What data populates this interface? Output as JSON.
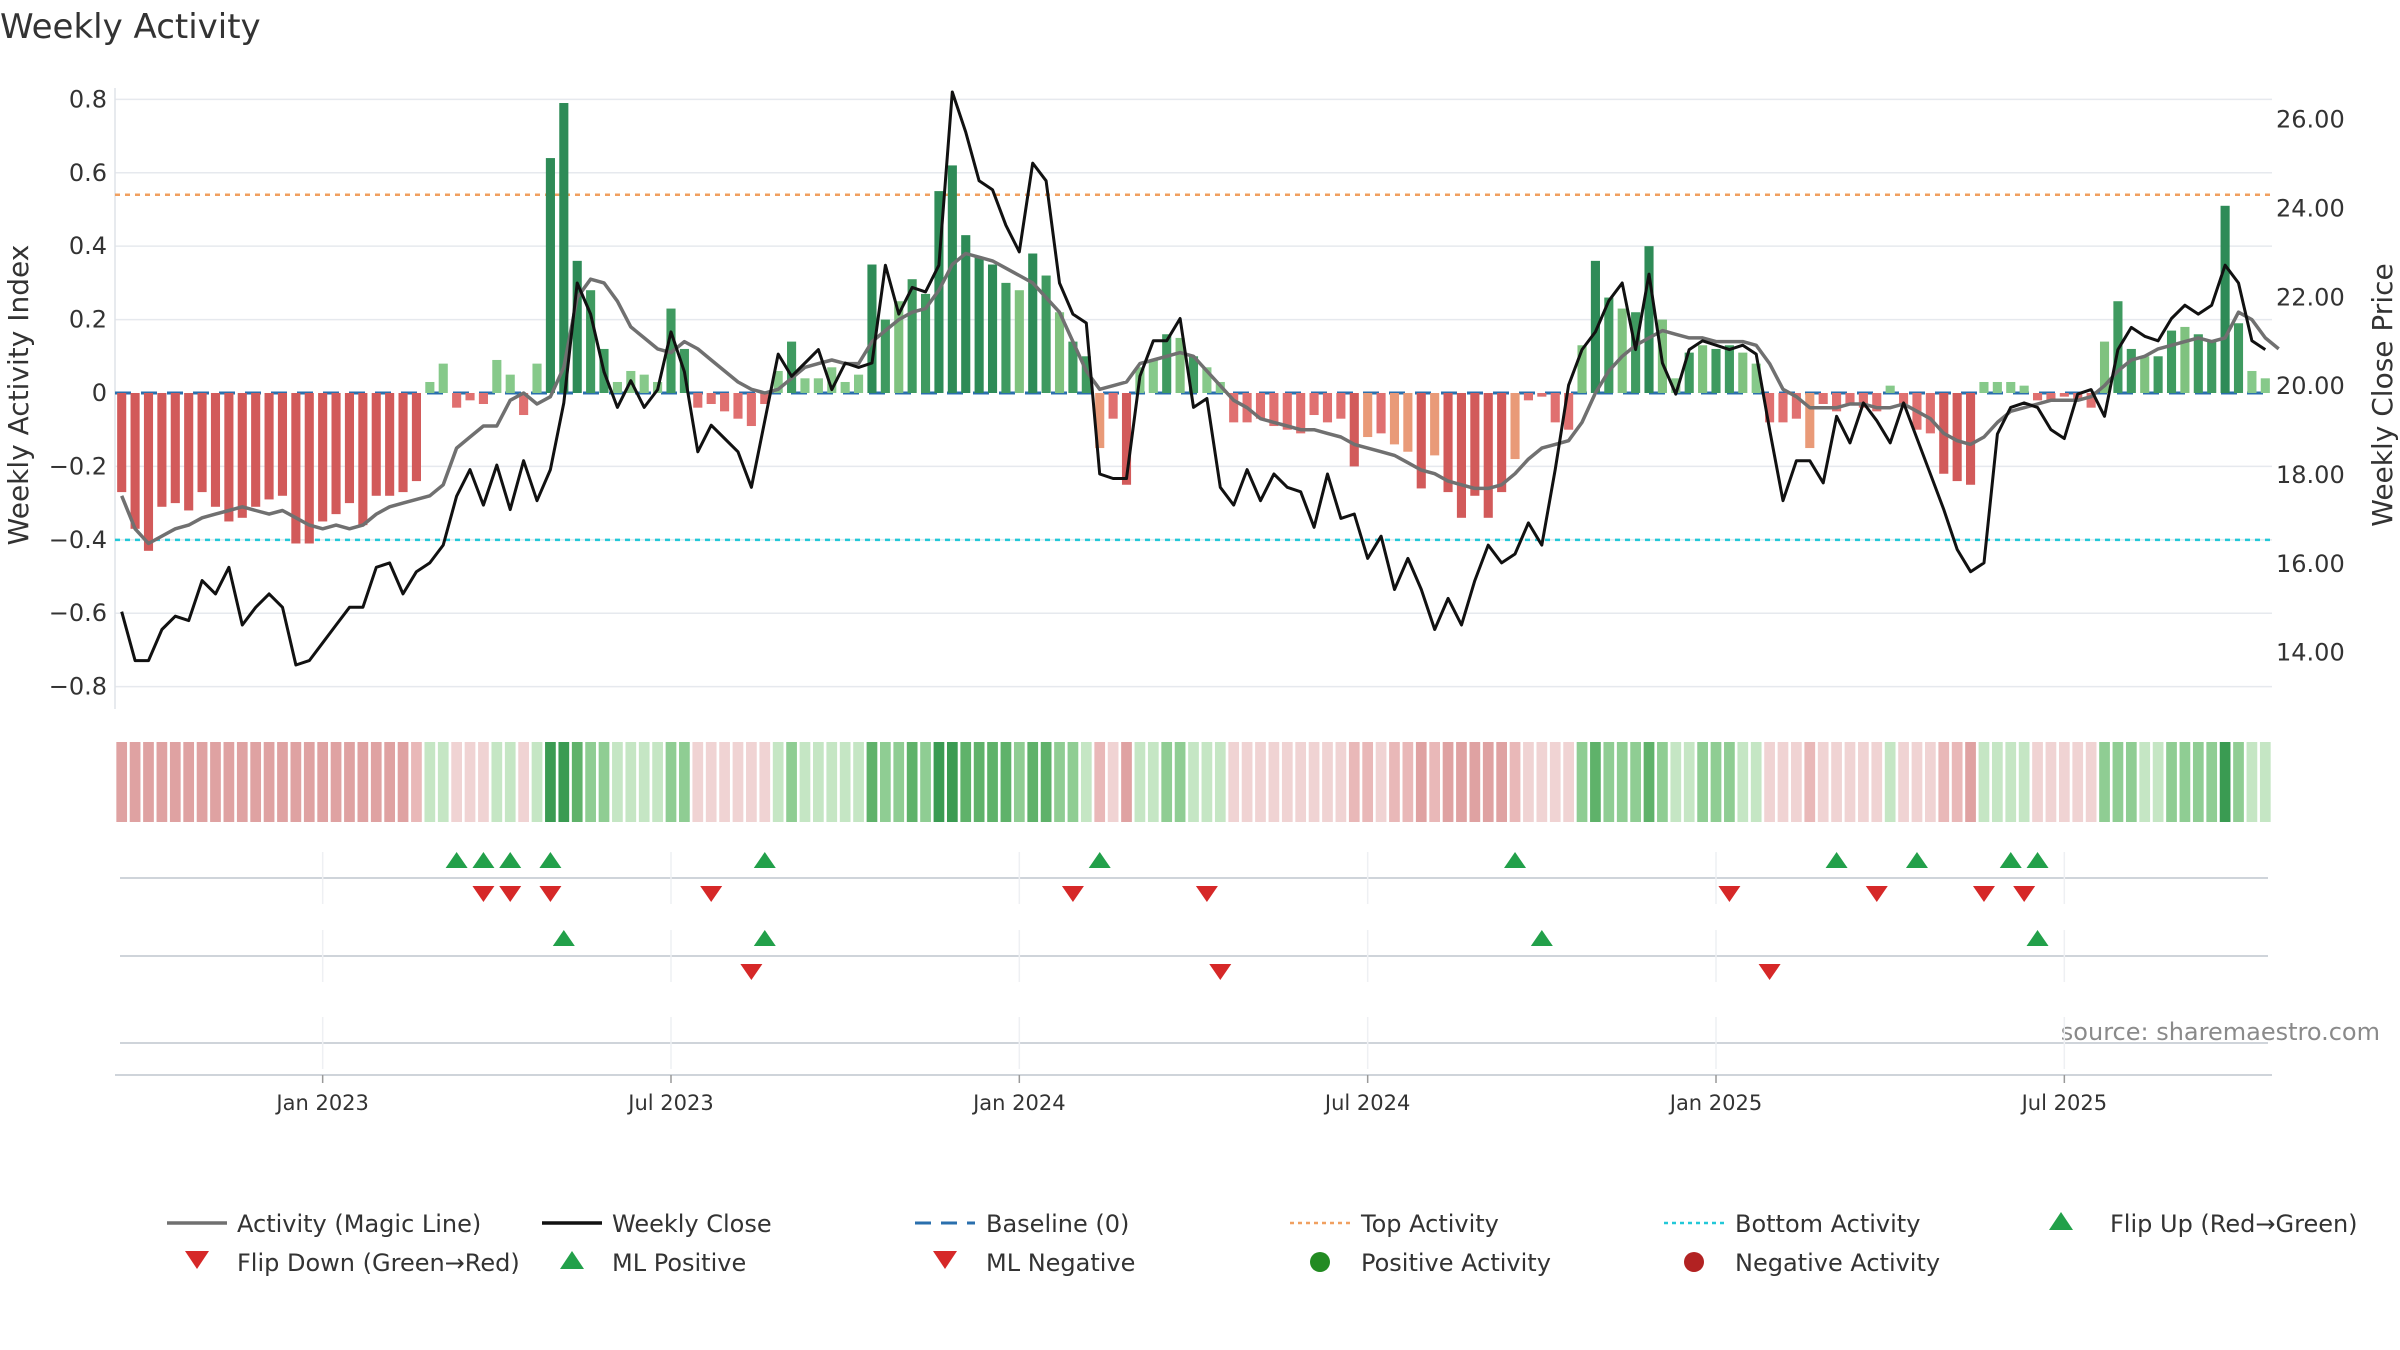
{
  "chart_data": {
    "type": "bar+line",
    "title": "Weekly Activity",
    "ylabel_left": "Weekly Activity Index",
    "ylabel_right": "Weekly Close Price",
    "ylim_left": [
      -0.85,
      0.82
    ],
    "ylim_right": [
      12.8,
      26.6
    ],
    "yticks_left": [
      {
        "v": 0.8,
        "label": "0.8"
      },
      {
        "v": 0.6,
        "label": "0.6"
      },
      {
        "v": 0.4,
        "label": "0.4"
      },
      {
        "v": 0.2,
        "label": "0.2"
      },
      {
        "v": 0,
        "label": "0"
      },
      {
        "v": -0.2,
        "label": "−0.2"
      },
      {
        "v": -0.4,
        "label": "−0.4"
      },
      {
        "v": -0.6,
        "label": "−0.6"
      },
      {
        "v": -0.8,
        "label": "−0.8"
      }
    ],
    "yticks_right": [
      {
        "v": 26,
        "label": "26.00"
      },
      {
        "v": 24,
        "label": "24.00"
      },
      {
        "v": 22,
        "label": "22.00"
      },
      {
        "v": 20,
        "label": "20.00"
      },
      {
        "v": 18,
        "label": "18.00"
      },
      {
        "v": 16,
        "label": "16.00"
      },
      {
        "v": 14,
        "label": "14.00"
      }
    ],
    "xticks": [
      {
        "week": 15,
        "label": "Jan 2023"
      },
      {
        "week": 41,
        "label": "Jul 2023"
      },
      {
        "week": 67,
        "label": "Jan 2024"
      },
      {
        "week": 93,
        "label": "Jul 2024"
      },
      {
        "week": 119,
        "label": "Jan 2025"
      },
      {
        "week": 145,
        "label": "Jul 2025"
      }
    ],
    "top_activity": 0.54,
    "bottom_activity": -0.4,
    "baseline": 0,
    "activity_weekly": [
      -0.27,
      -0.37,
      -0.43,
      -0.31,
      -0.3,
      -0.32,
      -0.27,
      -0.31,
      -0.35,
      -0.34,
      -0.31,
      -0.29,
      -0.28,
      -0.41,
      -0.41,
      -0.35,
      -0.33,
      -0.3,
      -0.36,
      -0.28,
      -0.28,
      -0.27,
      -0.24,
      0.03,
      0.08,
      -0.04,
      -0.02,
      -0.03,
      0.09,
      0.05,
      -0.06,
      0.08,
      0.64,
      0.79,
      0.36,
      0.28,
      0.12,
      0.03,
      0.06,
      0.05,
      0.03,
      0.23,
      0.12,
      -0.04,
      -0.03,
      -0.05,
      -0.07,
      -0.09,
      -0.03,
      0.06,
      0.14,
      0.04,
      0.04,
      0.07,
      0.03,
      0.05,
      0.35,
      0.2,
      0.25,
      0.31,
      0.27,
      0.55,
      0.62,
      0.43,
      0.37,
      0.35,
      0.3,
      0.28,
      0.38,
      0.32,
      0.22,
      0.14,
      0.1,
      -0.15,
      -0.07,
      -0.25,
      0.07,
      0.09,
      0.16,
      0.15,
      0.1,
      0.07,
      0.03,
      -0.08,
      -0.08,
      -0.07,
      -0.09,
      -0.1,
      -0.11,
      -0.06,
      -0.08,
      -0.07,
      -0.2,
      -0.12,
      -0.11,
      -0.14,
      -0.16,
      -0.26,
      -0.17,
      -0.27,
      -0.34,
      -0.28,
      -0.34,
      -0.27,
      -0.18,
      -0.02,
      -0.01,
      -0.08,
      -0.1,
      0.13,
      0.36,
      0.26,
      0.23,
      0.22,
      0.4,
      0.2,
      0.04,
      0.11,
      0.13,
      0.12,
      0.13,
      0.11,
      0.08,
      -0.08,
      -0.08,
      -0.07,
      -0.15,
      -0.03,
      -0.05,
      -0.03,
      -0.04,
      -0.05,
      0.02,
      -0.03,
      -0.1,
      -0.11,
      -0.22,
      -0.24,
      -0.25,
      0.03,
      0.03,
      0.03,
      0.02,
      -0.02,
      -0.02,
      -0.01,
      -0.02,
      -0.04,
      0.14,
      0.25,
      0.12,
      0.1,
      0.1,
      0.17,
      0.18,
      0.16,
      0.14,
      0.51,
      0.19,
      0.06,
      0.04
    ],
    "magic_line": [
      -0.28,
      -0.37,
      -0.41,
      -0.39,
      -0.37,
      -0.36,
      -0.34,
      -0.33,
      -0.32,
      -0.31,
      -0.32,
      -0.33,
      -0.32,
      -0.34,
      -0.36,
      -0.37,
      -0.36,
      -0.37,
      -0.36,
      -0.33,
      -0.31,
      -0.3,
      -0.29,
      -0.28,
      -0.25,
      -0.15,
      -0.12,
      -0.09,
      -0.09,
      -0.02,
      0.0,
      -0.03,
      -0.01,
      0.07,
      0.26,
      0.31,
      0.3,
      0.25,
      0.18,
      0.15,
      0.12,
      0.11,
      0.14,
      0.12,
      0.09,
      0.06,
      0.03,
      0.01,
      0.0,
      0.01,
      0.04,
      0.07,
      0.08,
      0.09,
      0.08,
      0.08,
      0.14,
      0.17,
      0.2,
      0.22,
      0.23,
      0.28,
      0.35,
      0.38,
      0.37,
      0.36,
      0.34,
      0.32,
      0.3,
      0.26,
      0.22,
      0.14,
      0.06,
      0.01,
      0.02,
      0.03,
      0.08,
      0.09,
      0.1,
      0.11,
      0.1,
      0.06,
      0.02,
      -0.02,
      -0.04,
      -0.07,
      -0.08,
      -0.09,
      -0.1,
      -0.1,
      -0.11,
      -0.12,
      -0.14,
      -0.15,
      -0.16,
      -0.17,
      -0.19,
      -0.21,
      -0.22,
      -0.24,
      -0.25,
      -0.26,
      -0.26,
      -0.25,
      -0.22,
      -0.18,
      -0.15,
      -0.14,
      -0.13,
      -0.08,
      0.0,
      0.06,
      0.1,
      0.13,
      0.15,
      0.17,
      0.16,
      0.15,
      0.15,
      0.14,
      0.14,
      0.14,
      0.13,
      0.08,
      0.01,
      -0.01,
      -0.04,
      -0.04,
      -0.04,
      -0.03,
      -0.03,
      -0.04,
      -0.04,
      -0.03,
      -0.05,
      -0.07,
      -0.11,
      -0.13,
      -0.14,
      -0.12,
      -0.08,
      -0.05,
      -0.04,
      -0.03,
      -0.02,
      -0.02,
      -0.02,
      -0.01,
      0.02,
      0.06,
      0.09,
      0.1,
      0.12,
      0.13,
      0.14,
      0.15,
      0.14,
      0.15,
      0.22,
      0.2,
      0.15,
      0.12
    ],
    "weekly_close": [
      14.9,
      13.8,
      13.8,
      14.5,
      14.8,
      14.7,
      15.6,
      15.3,
      15.9,
      14.6,
      15.0,
      15.3,
      15.0,
      13.7,
      13.8,
      14.2,
      14.6,
      15.0,
      15.0,
      15.9,
      16.0,
      15.3,
      15.8,
      16.0,
      16.4,
      17.5,
      18.1,
      17.3,
      18.2,
      17.2,
      18.3,
      17.4,
      18.1,
      19.6,
      22.3,
      21.6,
      20.3,
      19.5,
      20.1,
      19.5,
      19.9,
      21.2,
      20.3,
      18.5,
      19.1,
      18.8,
      18.5,
      17.7,
      19.2,
      20.7,
      20.2,
      20.5,
      20.8,
      19.9,
      20.5,
      20.4,
      20.5,
      22.7,
      21.6,
      22.2,
      22.1,
      22.7,
      26.6,
      25.7,
      24.6,
      24.4,
      23.6,
      23.0,
      25.0,
      24.6,
      22.3,
      21.6,
      21.4,
      18.0,
      17.9,
      17.9,
      20.2,
      21.0,
      21.0,
      21.5,
      19.5,
      19.7,
      17.7,
      17.3,
      18.1,
      17.4,
      18.0,
      17.7,
      17.6,
      16.8,
      18.0,
      17.0,
      17.1,
      16.1,
      16.6,
      15.4,
      16.1,
      15.4,
      14.5,
      15.2,
      14.6,
      15.6,
      16.4,
      16.0,
      16.2,
      16.9,
      16.4,
      18.1,
      20.0,
      20.8,
      21.2,
      21.9,
      22.3,
      20.8,
      22.5,
      20.5,
      19.8,
      20.8,
      21.0,
      20.9,
      20.8,
      20.9,
      20.7,
      19.0,
      17.4,
      18.3,
      18.3,
      17.8,
      19.3,
      18.7,
      19.6,
      19.2,
      18.7,
      19.6,
      18.8,
      18.0,
      17.2,
      16.3,
      15.8,
      16.0,
      18.9,
      19.5,
      19.6,
      19.5,
      19.0,
      18.8,
      19.8,
      19.9,
      19.3,
      20.8,
      21.3,
      21.1,
      21.0,
      21.5,
      21.8,
      21.6,
      21.8,
      22.7,
      22.3,
      21.0,
      20.8
    ]
  },
  "flip_markers": {
    "flip_up_weeks": [
      25,
      27,
      29,
      32,
      48,
      73,
      104,
      128,
      134,
      141,
      143
    ],
    "flip_down_weeks": [
      27,
      29,
      32,
      44,
      71,
      81,
      120,
      131,
      139,
      142
    ]
  },
  "ml_markers": {
    "ml_positive_weeks": [
      33,
      48,
      106,
      143
    ],
    "ml_negative_weeks": [
      47,
      82,
      123
    ]
  },
  "source": "source: sharemaestro.com",
  "legend": {
    "items": [
      {
        "label": "Activity (Magic Line)"
      },
      {
        "label": "Weekly Close"
      },
      {
        "label": "Baseline (0)"
      },
      {
        "label": "Top Activity"
      },
      {
        "label": "Bottom Activity"
      },
      {
        "label": "Flip Up (Red→Green)"
      },
      {
        "label": "Flip Down (Green→Red)"
      },
      {
        "label": "ML Positive"
      },
      {
        "label": "ML Negative"
      },
      {
        "label": "Positive Activity"
      },
      {
        "label": "Negative Activity"
      }
    ]
  },
  "colors": {
    "magic_line": "#707070",
    "weekly_close": "#111111",
    "baseline": "#2a6fad",
    "top_activity": "#f0a060",
    "bottom_activity": "#22c8d8",
    "flip_up": "#22a04a",
    "flip_down": "#d62828",
    "ml_positive": "#22a04a",
    "ml_negative": "#d62828",
    "positive_activity": "#228b22",
    "negative_activity": "#b22222"
  }
}
